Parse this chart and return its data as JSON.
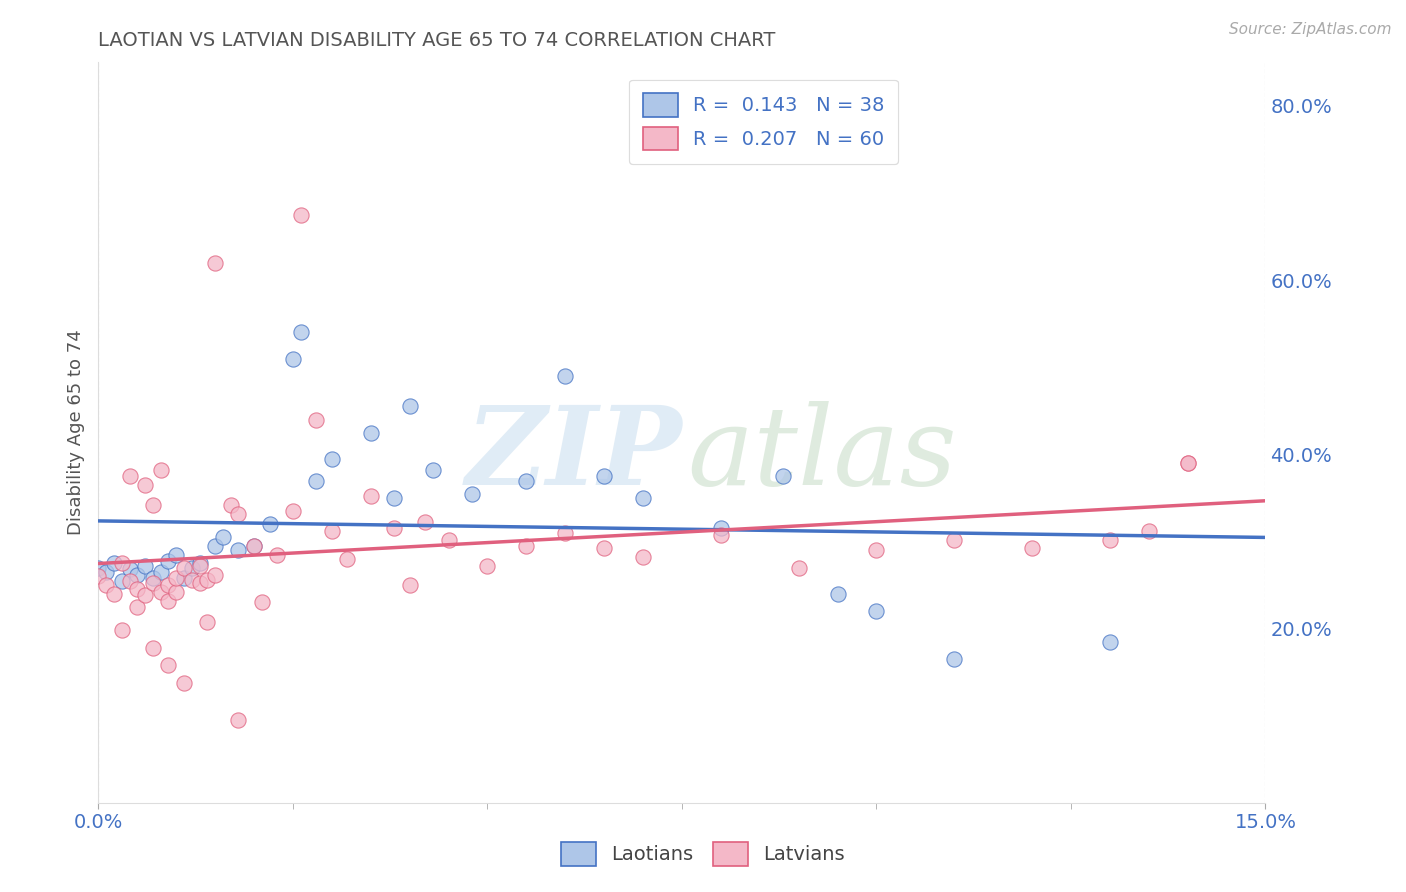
{
  "title": "LAOTIAN VS LATVIAN DISABILITY AGE 65 TO 74 CORRELATION CHART",
  "source": "Source: ZipAtlas.com",
  "ylabel": "Disability Age 65 to 74",
  "xmin": 0.0,
  "xmax": 0.15,
  "ymin": 0.0,
  "ymax": 0.85,
  "ytick_labels": [
    "20.0%",
    "40.0%",
    "60.0%",
    "80.0%"
  ],
  "ytick_values": [
    0.2,
    0.4,
    0.6,
    0.8
  ],
  "xtick_labels": [
    "0.0%",
    "15.0%"
  ],
  "xtick_values": [
    0.0,
    0.15
  ],
  "laotian_color": "#aec6e8",
  "latvian_color": "#f4b8c8",
  "laotian_line_color": "#4472c4",
  "latvian_line_color": "#e0607e",
  "legend_label_1": "R =  0.143   N = 38",
  "legend_label_2": "R =  0.207   N = 60",
  "bottom_legend_1": "Laotians",
  "bottom_legend_2": "Latvians",
  "title_color": "#555555",
  "axis_label_color": "#4472c4",
  "laotian_x": [
    0.0,
    0.001,
    0.002,
    0.003,
    0.004,
    0.005,
    0.006,
    0.007,
    0.008,
    0.009,
    0.01,
    0.011,
    0.012,
    0.013,
    0.015,
    0.016,
    0.018,
    0.02,
    0.022,
    0.025,
    0.026,
    0.028,
    0.03,
    0.035,
    0.038,
    0.04,
    0.043,
    0.048,
    0.055,
    0.06,
    0.065,
    0.07,
    0.08,
    0.088,
    0.095,
    0.1,
    0.11,
    0.13
  ],
  "laotian_y": [
    0.27,
    0.265,
    0.275,
    0.255,
    0.268,
    0.262,
    0.272,
    0.258,
    0.265,
    0.278,
    0.285,
    0.258,
    0.27,
    0.275,
    0.295,
    0.305,
    0.29,
    0.295,
    0.32,
    0.51,
    0.54,
    0.37,
    0.395,
    0.425,
    0.35,
    0.455,
    0.382,
    0.355,
    0.37,
    0.49,
    0.375,
    0.35,
    0.315,
    0.375,
    0.24,
    0.22,
    0.165,
    0.185
  ],
  "latvian_x": [
    0.0,
    0.001,
    0.002,
    0.003,
    0.004,
    0.004,
    0.005,
    0.005,
    0.006,
    0.006,
    0.007,
    0.007,
    0.008,
    0.008,
    0.009,
    0.009,
    0.01,
    0.01,
    0.011,
    0.012,
    0.013,
    0.013,
    0.014,
    0.015,
    0.015,
    0.017,
    0.018,
    0.02,
    0.021,
    0.023,
    0.025,
    0.026,
    0.028,
    0.03,
    0.032,
    0.035,
    0.038,
    0.04,
    0.042,
    0.045,
    0.05,
    0.055,
    0.06,
    0.065,
    0.07,
    0.08,
    0.09,
    0.1,
    0.11,
    0.12,
    0.13,
    0.135,
    0.14,
    0.003,
    0.007,
    0.009,
    0.011,
    0.014,
    0.018,
    0.14
  ],
  "latvian_y": [
    0.26,
    0.25,
    0.24,
    0.275,
    0.255,
    0.375,
    0.245,
    0.225,
    0.238,
    0.365,
    0.252,
    0.342,
    0.242,
    0.382,
    0.232,
    0.25,
    0.242,
    0.258,
    0.27,
    0.256,
    0.252,
    0.272,
    0.256,
    0.262,
    0.62,
    0.342,
    0.332,
    0.295,
    0.23,
    0.285,
    0.335,
    0.675,
    0.44,
    0.312,
    0.28,
    0.352,
    0.315,
    0.25,
    0.322,
    0.302,
    0.272,
    0.295,
    0.31,
    0.292,
    0.282,
    0.308,
    0.27,
    0.29,
    0.302,
    0.292,
    0.302,
    0.312,
    0.39,
    0.198,
    0.178,
    0.158,
    0.138,
    0.208,
    0.095,
    0.39
  ]
}
